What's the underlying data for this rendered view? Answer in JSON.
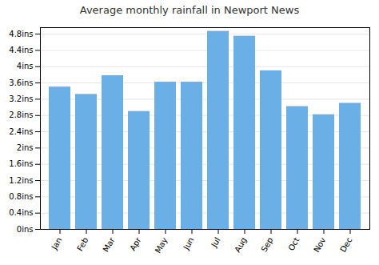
{
  "chart_data": {
    "type": "bar",
    "title": "Average monthly rainfall in Newport News",
    "categories": [
      "Jan",
      "Feb",
      "Mar",
      "Apr",
      "May",
      "Jun",
      "Jul",
      "Aug",
      "Sep",
      "Oct",
      "Nov",
      "Dec"
    ],
    "values": [
      3.5,
      3.32,
      3.78,
      2.9,
      3.62,
      3.62,
      4.87,
      4.75,
      3.9,
      3.02,
      2.82,
      3.1
    ],
    "color": "#6aafe6",
    "ylim": [
      0,
      4.96
    ],
    "yticks": [
      {
        "value": 0,
        "label": "0ins"
      },
      {
        "value": 0.4,
        "label": "0.4ins"
      },
      {
        "value": 0.8,
        "label": "0.8ins"
      },
      {
        "value": 1.2,
        "label": "1.2ins"
      },
      {
        "value": 1.6,
        "label": "1.6ins"
      },
      {
        "value": 2,
        "label": "2ins"
      },
      {
        "value": 2.4,
        "label": "2.4ins"
      },
      {
        "value": 2.8,
        "label": "2.8ins"
      },
      {
        "value": 3.2,
        "label": "3.2ins"
      },
      {
        "value": 3.6,
        "label": "3.6ins"
      },
      {
        "value": 4,
        "label": "4ins"
      },
      {
        "value": 4.4,
        "label": "4.4ins"
      },
      {
        "value": 4.8,
        "label": "4.8ins"
      }
    ],
    "grid": true
  }
}
